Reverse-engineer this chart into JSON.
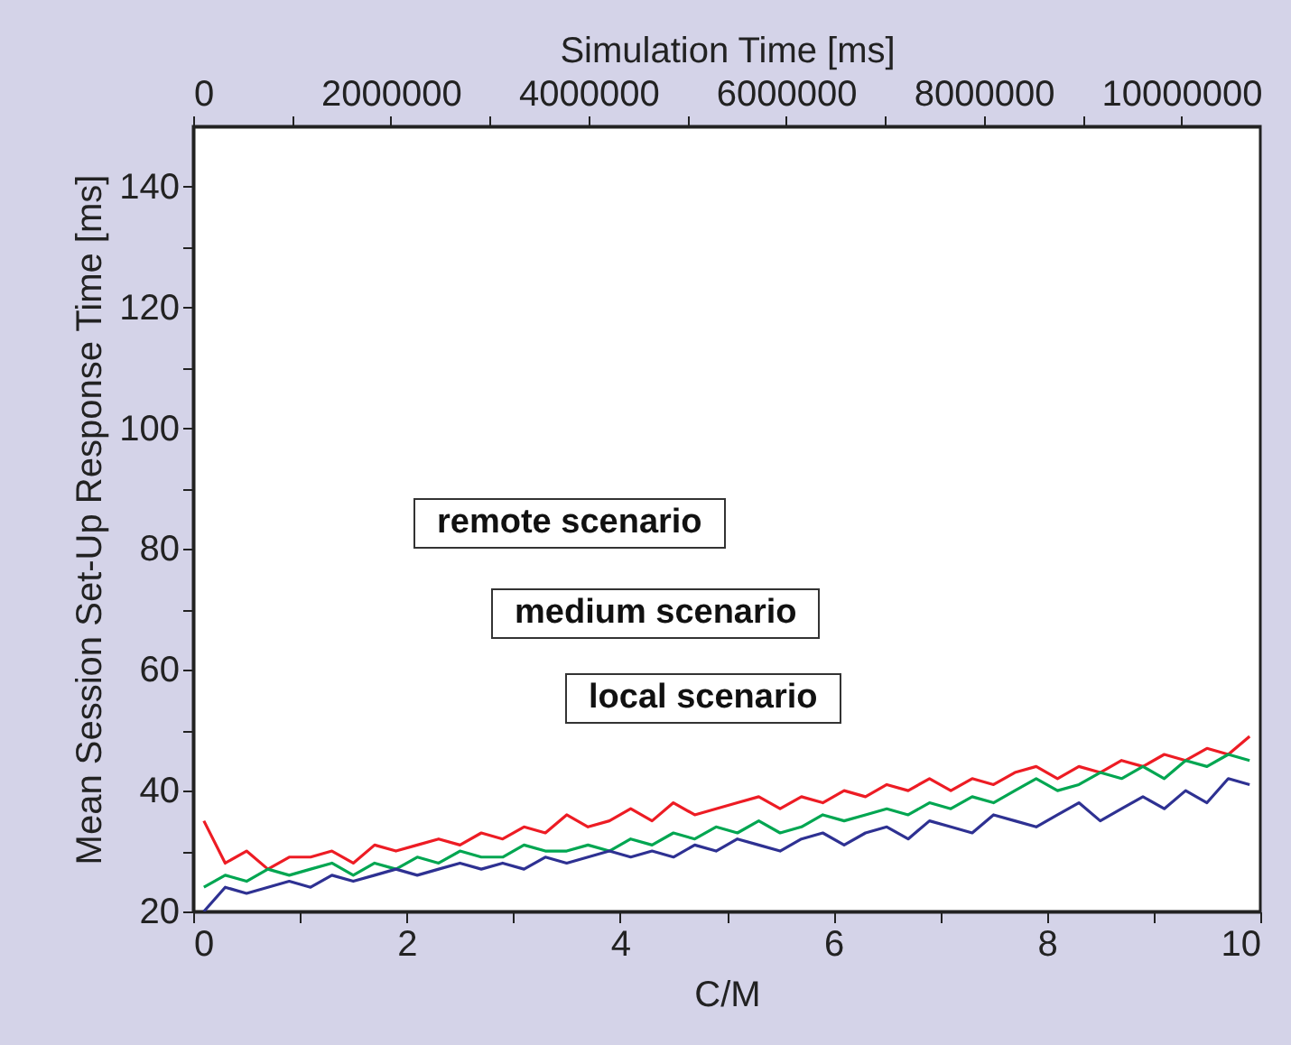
{
  "chart_data": {
    "type": "line",
    "xlabel": "C/M",
    "ylabel": "Mean Session Set-Up Response Time [ms]",
    "x2label": "Simulation Time [ms]",
    "xlim": [
      0,
      10
    ],
    "xticks": [
      0,
      {
        "value": 1,
        "label": null
      },
      2,
      {
        "value": 3,
        "label": null
      },
      4,
      {
        "value": 5,
        "label": null
      },
      6,
      {
        "value": 7,
        "label": null
      },
      8,
      {
        "value": 9,
        "label": null
      },
      10
    ],
    "ylim": [
      20,
      150
    ],
    "yticks": [
      20,
      {
        "value": 30,
        "label": null
      },
      40,
      {
        "value": 50,
        "label": null
      },
      60,
      {
        "value": 70,
        "label": null
      },
      80,
      {
        "value": 90,
        "label": null
      },
      100,
      {
        "value": 110,
        "label": null
      },
      120,
      {
        "value": 130,
        "label": null
      },
      140
    ],
    "x2lim": [
      0,
      10800000
    ],
    "x2ticks": [
      0,
      {
        "value": 1000000,
        "label": null
      },
      2000000,
      {
        "value": 3000000,
        "label": null
      },
      4000000,
      {
        "value": 5000000,
        "label": null
      },
      6000000,
      {
        "value": 7000000,
        "label": null
      },
      8000000,
      {
        "value": 9000000,
        "label": null
      },
      10000000
    ],
    "grid": false,
    "marker": "none",
    "line_style": "solid",
    "annotations": [
      "remote scenario",
      "medium scenario",
      "local scenario"
    ],
    "x": [
      0.1,
      0.3,
      0.5,
      0.7,
      0.9,
      1.1,
      1.3,
      1.5,
      1.7,
      1.9,
      2.1,
      2.3,
      2.5,
      2.7,
      2.9,
      3.1,
      3.3,
      3.5,
      3.7,
      3.9,
      4.1,
      4.3,
      4.5,
      4.7,
      4.9,
      5.1,
      5.3,
      5.5,
      5.7,
      5.9,
      6.1,
      6.3,
      6.5,
      6.7,
      6.9,
      7.1,
      7.3,
      7.5,
      7.7,
      7.9,
      8.1,
      8.3,
      8.5,
      8.7,
      8.9,
      9.1,
      9.3,
      9.5,
      9.7,
      9.9
    ],
    "series": [
      {
        "color": "#ed1c24",
        "values": [
          35,
          28,
          30,
          27,
          29,
          29,
          30,
          28,
          31,
          30,
          31,
          32,
          31,
          33,
          32,
          34,
          33,
          36,
          34,
          35,
          37,
          35,
          38,
          36,
          37,
          38,
          39,
          37,
          39,
          38,
          40,
          39,
          41,
          40,
          42,
          40,
          42,
          41,
          43,
          44,
          42,
          44,
          43,
          45,
          44,
          46,
          45,
          47,
          46,
          49
        ]
      },
      {
        "color": "#00a651",
        "values": [
          24,
          26,
          25,
          27,
          26,
          27,
          28,
          26,
          28,
          27,
          29,
          28,
          30,
          29,
          29,
          31,
          30,
          30,
          31,
          30,
          32,
          31,
          33,
          32,
          34,
          33,
          35,
          33,
          34,
          36,
          35,
          36,
          37,
          36,
          38,
          37,
          39,
          38,
          40,
          42,
          40,
          41,
          43,
          42,
          44,
          42,
          45,
          44,
          46,
          45
        ]
      },
      {
        "color": "#2e3192",
        "values": [
          20,
          24,
          23,
          24,
          25,
          24,
          26,
          25,
          26,
          27,
          26,
          27,
          28,
          27,
          28,
          27,
          29,
          28,
          29,
          30,
          29,
          30,
          29,
          31,
          30,
          32,
          31,
          30,
          32,
          33,
          31,
          33,
          34,
          32,
          35,
          34,
          33,
          36,
          35,
          34,
          36,
          38,
          35,
          37,
          39,
          37,
          40,
          38,
          42,
          41
        ]
      }
    ]
  }
}
